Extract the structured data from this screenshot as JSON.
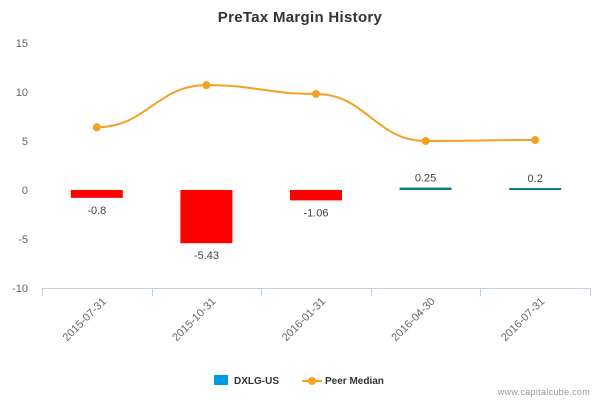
{
  "chart_data": {
    "type": "bar",
    "title": "PreTax Margin History",
    "categories": [
      "2015-07-31",
      "2015-10-31",
      "2016-01-31",
      "2016-04-30",
      "2016-07-31"
    ],
    "series": [
      {
        "name": "DXLG-US",
        "type": "bar",
        "values": [
          -0.8,
          -5.43,
          -1.06,
          0.25,
          0.2
        ],
        "labels": [
          "-0.8",
          "-5.43",
          "-1.06",
          "0.25",
          "0.2"
        ],
        "colors": [
          "#ff0000",
          "#ff0000",
          "#ff0000",
          "#008080",
          "#008080"
        ],
        "legend_color": "#0099e6"
      },
      {
        "name": "Peer Median",
        "type": "line",
        "values": [
          6.4,
          10.7,
          9.8,
          5.0,
          5.1
        ],
        "color": "#f4a025"
      }
    ],
    "y_ticks": [
      "15",
      "10",
      "5",
      "0",
      "-5",
      "-10"
    ],
    "ylim": [
      -10,
      15
    ],
    "xlabel": "",
    "ylabel": "",
    "grid": false,
    "legend_position": "bottom"
  },
  "credit": "www.capitalcube.com"
}
